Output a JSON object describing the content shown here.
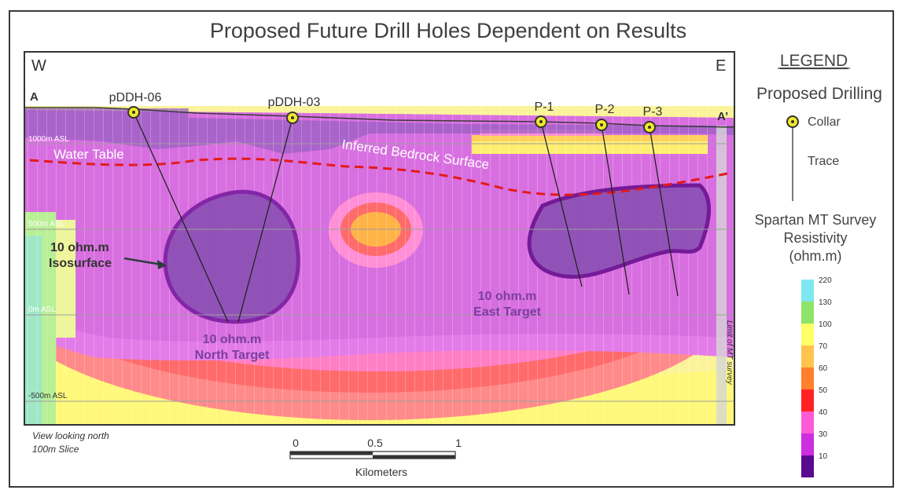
{
  "title": "Proposed Future Drill Holes Dependent on Results",
  "section": {
    "west_label": "W",
    "east_label": "E",
    "start_label": "A",
    "end_label": "A’",
    "water_table": "Water Table",
    "bedrock": "Inferred Bedrock Surface",
    "elevations": [
      "1000m ASL",
      "500m ASL",
      "0m ASL",
      "-500m ASL"
    ],
    "limit_label": "Limit of MT survey",
    "iso_label_line1": "10 ohm.m",
    "iso_label_line2": "Isosurface",
    "north_target_line1": "10 ohm.m",
    "north_target_line2": "North Target",
    "east_target_line1": "10 ohm.m",
    "east_target_line2": "East Target",
    "drill_holes": [
      {
        "name": "pDDH-06"
      },
      {
        "name": "pDDH-03"
      },
      {
        "name": "P-1"
      },
      {
        "name": "P-2"
      },
      {
        "name": "P-3"
      }
    ]
  },
  "legend": {
    "heading": "LEGEND",
    "subheading": "Proposed Drilling",
    "collar": "Collar",
    "trace": "Trace",
    "survey_line1": "Spartan MT Survey",
    "survey_line2": "Resistivity",
    "survey_line3": "(ohm.m)",
    "scale": [
      {
        "value": "220",
        "color": "#7fe7ef"
      },
      {
        "value": "130",
        "color": "#8fe36a"
      },
      {
        "value": "100",
        "color": "#ffff66"
      },
      {
        "value": "70",
        "color": "#ffc44d"
      },
      {
        "value": "60",
        "color": "#ff7f2a"
      },
      {
        "value": "50",
        "color": "#ff2222"
      },
      {
        "value": "40",
        "color": "#ff5ad6"
      },
      {
        "value": "30",
        "color": "#cc2ee0"
      },
      {
        "value": "10",
        "color": "#5a0a8f"
      }
    ]
  },
  "notes": {
    "line1": "View looking north",
    "line2": "100m Slice"
  },
  "scale_bar": {
    "ticks": [
      "0",
      "0.5",
      "1"
    ],
    "unit": "Kilometers"
  }
}
